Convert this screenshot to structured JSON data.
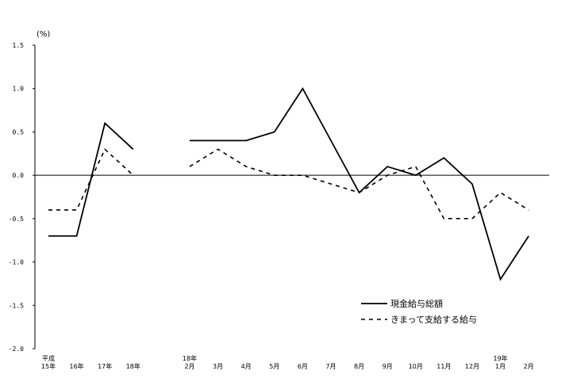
{
  "chart_data": {
    "type": "line",
    "unit_label": "(%)",
    "ylim": [
      -2.0,
      1.5
    ],
    "yticks": [
      "1.5",
      "1.0",
      "0.5",
      "0.0",
      "-0.5",
      "-1.0",
      "-1.5",
      "-2.0"
    ],
    "categories": [
      {
        "top": "平成",
        "bottom": "15年"
      },
      {
        "top": "",
        "bottom": "16年"
      },
      {
        "top": "",
        "bottom": "17年"
      },
      {
        "top": "",
        "bottom": "18年"
      },
      {
        "top": "",
        "bottom": ""
      },
      {
        "top": "18年",
        "bottom": "2月"
      },
      {
        "top": "",
        "bottom": "3月"
      },
      {
        "top": "",
        "bottom": "4月"
      },
      {
        "top": "",
        "bottom": "5月"
      },
      {
        "top": "",
        "bottom": "6月"
      },
      {
        "top": "",
        "bottom": "7月"
      },
      {
        "top": "",
        "bottom": "8月"
      },
      {
        "top": "",
        "bottom": "9月"
      },
      {
        "top": "",
        "bottom": "10月"
      },
      {
        "top": "",
        "bottom": "11月"
      },
      {
        "top": "",
        "bottom": "12月"
      },
      {
        "top": "19年",
        "bottom": "1月"
      },
      {
        "top": "",
        "bottom": "2月"
      }
    ],
    "series": [
      {
        "name": "現金給与総額",
        "style": "solid",
        "color": "#000000",
        "values": [
          -0.7,
          -0.7,
          0.6,
          0.3,
          null,
          0.4,
          0.4,
          0.4,
          0.5,
          1.0,
          0.4,
          -0.2,
          0.1,
          0.0,
          0.2,
          -0.1,
          -1.2,
          -0.7
        ]
      },
      {
        "name": "きまって支給する給与",
        "style": "dashed",
        "color": "#000000",
        "values": [
          -0.4,
          -0.4,
          0.3,
          0.0,
          null,
          0.1,
          0.3,
          0.1,
          0.0,
          0.0,
          -0.1,
          -0.2,
          0.0,
          0.1,
          -0.5,
          -0.5,
          -0.2,
          -0.4
        ]
      }
    ],
    "grid": false,
    "legend_position": "bottom-right"
  }
}
